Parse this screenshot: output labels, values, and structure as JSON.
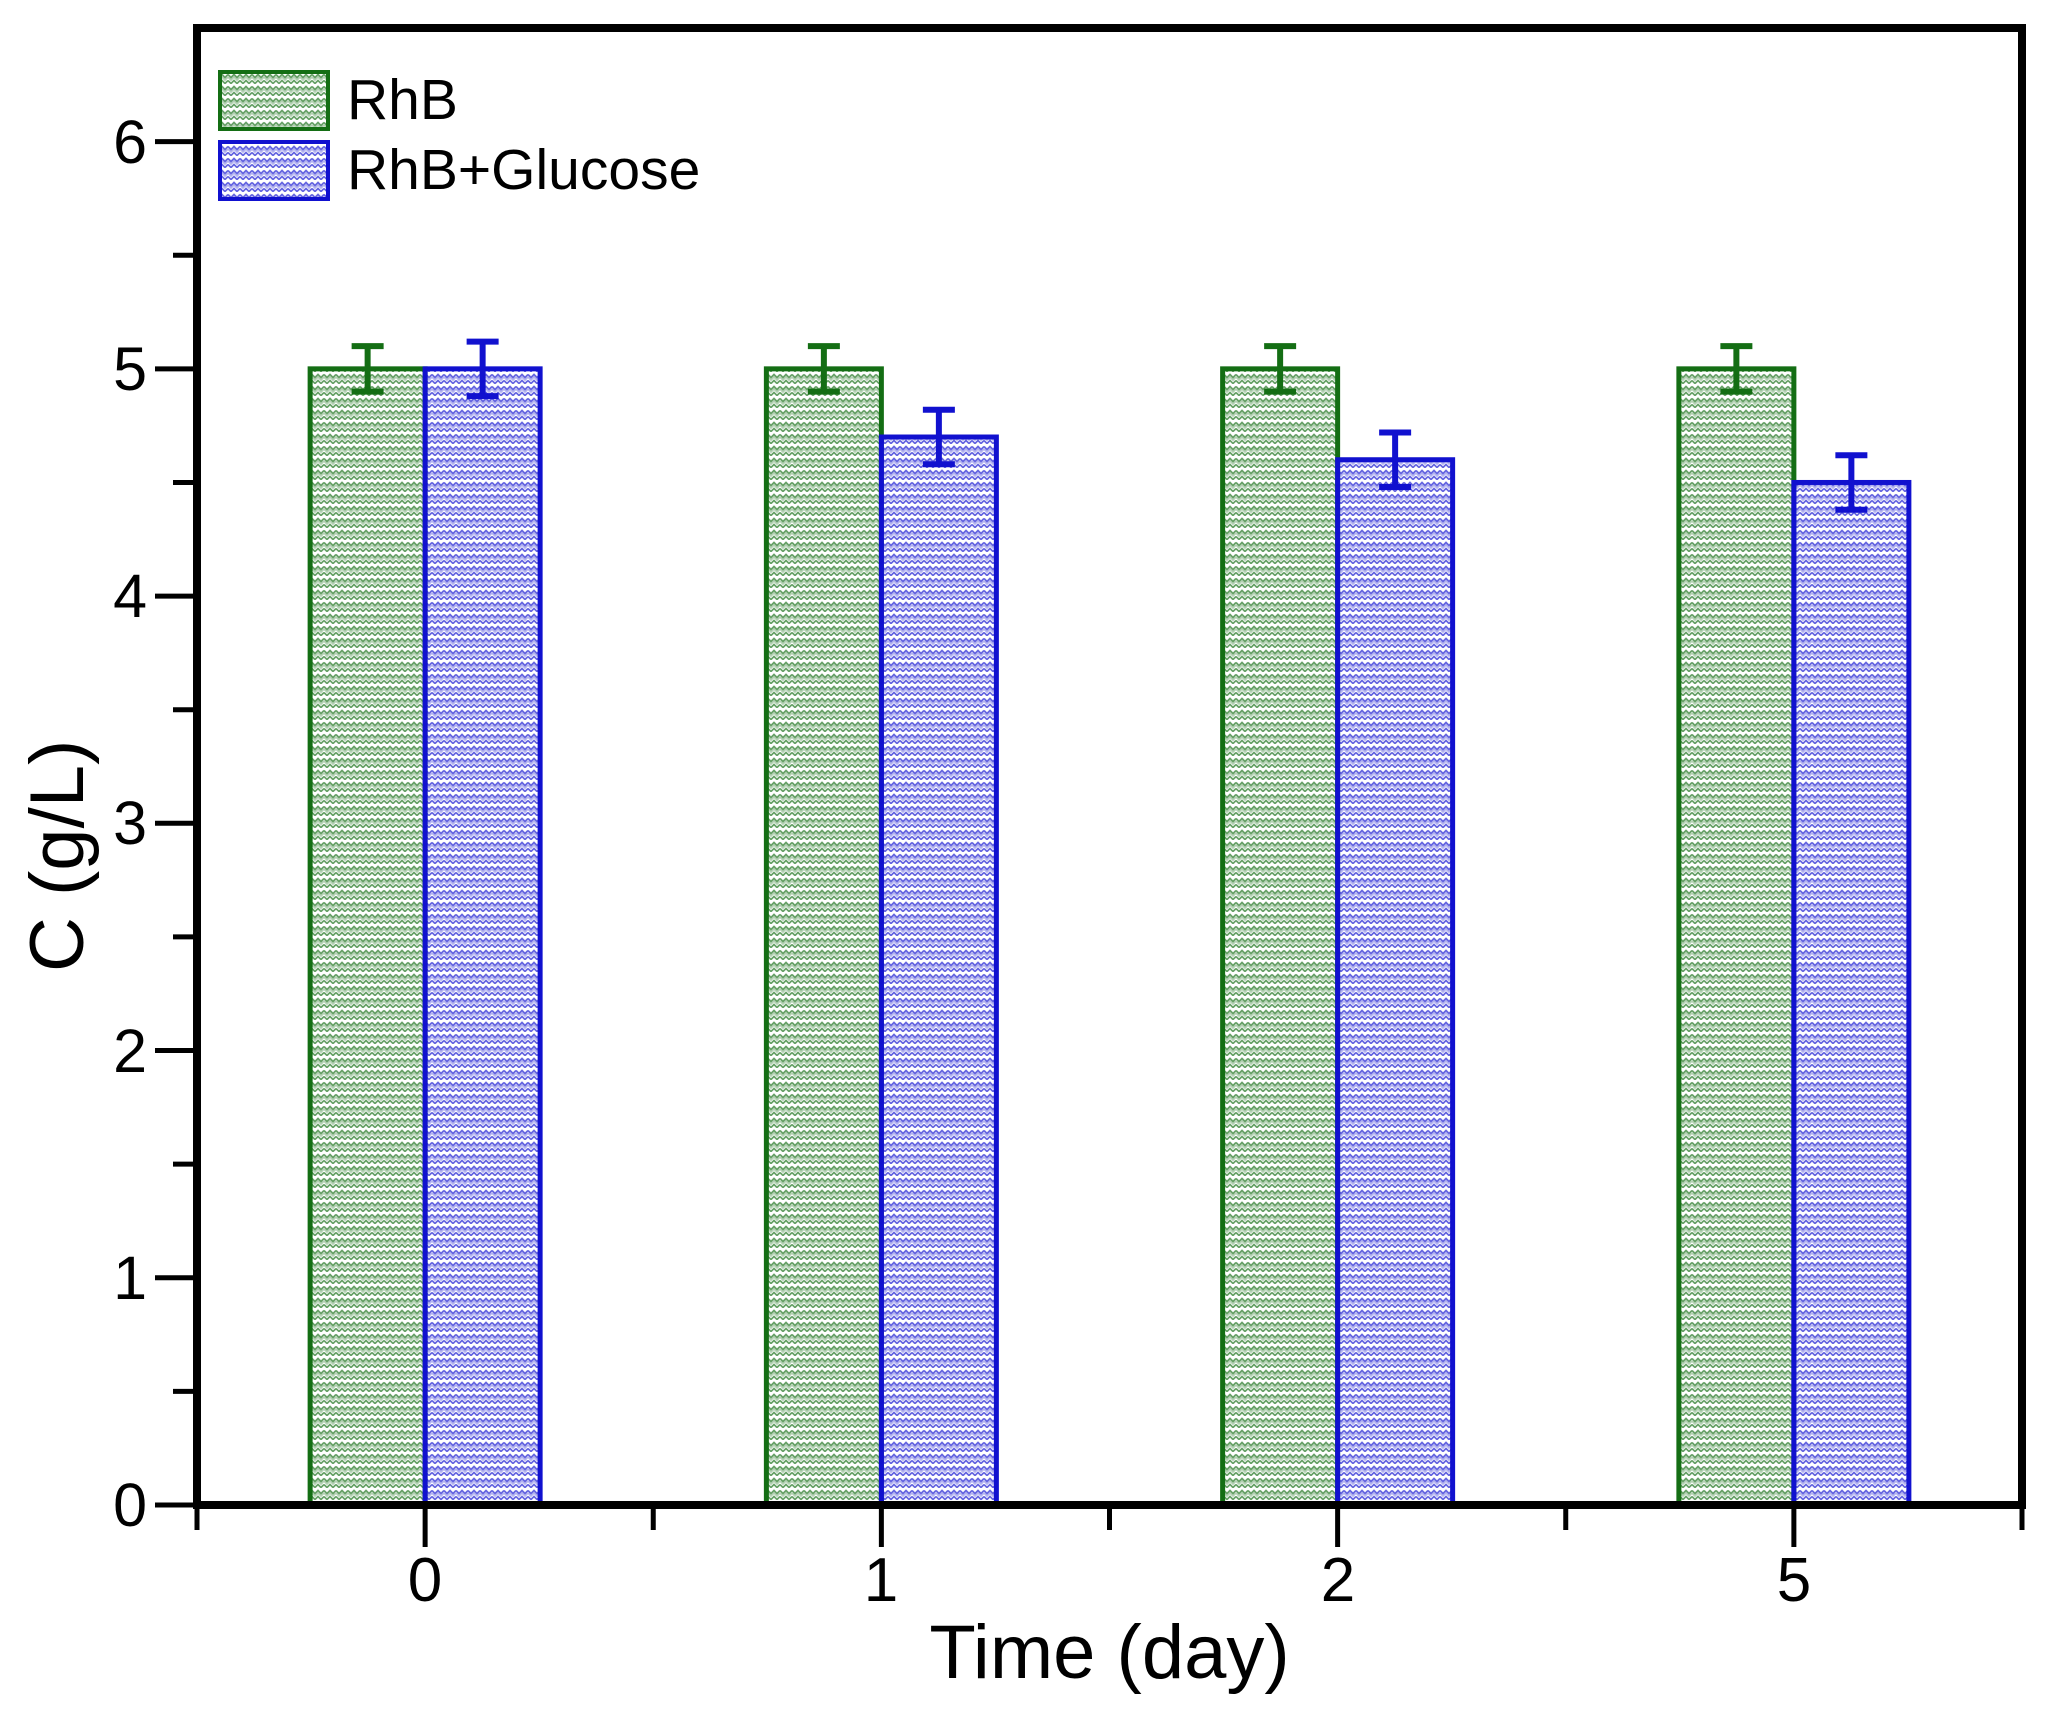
{
  "chart_data": {
    "type": "bar",
    "title": "",
    "xlabel": "Time (day)",
    "ylabel": "C (g/L)",
    "categories": [
      "0",
      "1",
      "2",
      "5"
    ],
    "series": [
      {
        "name": "RhB",
        "color": "#146e14",
        "pattern": "dense-weave-hatch",
        "values": [
          5.0,
          5.0,
          5.0,
          5.0
        ],
        "errors": [
          0.1,
          0.1,
          0.1,
          0.1
        ]
      },
      {
        "name": "RhB+Glucose",
        "color": "#1111cf",
        "pattern": "dense-weave-hatch",
        "values": [
          5.0,
          4.7,
          4.6,
          4.5
        ],
        "errors": [
          0.12,
          0.12,
          0.12,
          0.12
        ]
      }
    ],
    "ylim": [
      0,
      6.5
    ],
    "yticks": [
      0,
      1,
      2,
      3,
      4,
      5,
      6
    ],
    "ytick_minor_step": 0.5,
    "error_bars": true,
    "grid": false,
    "legend_position": "top-left",
    "axis_color": "#000000",
    "background": "#ffffff"
  }
}
